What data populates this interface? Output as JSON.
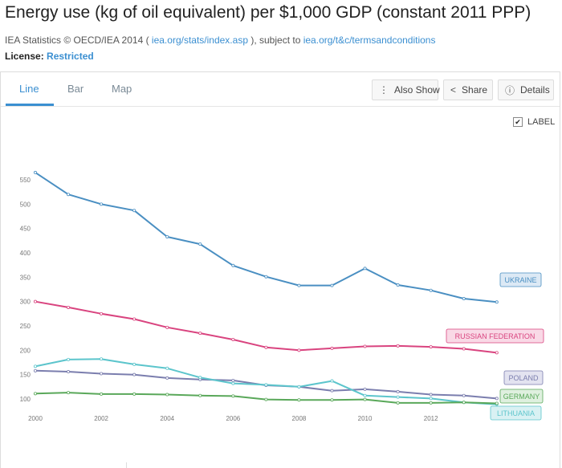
{
  "header": {
    "title": "Energy use (kg of oil equivalent) per $1,000 GDP (constant 2011 PPP)",
    "source_prefix": "IEA Statistics © OECD/IEA 2014 (",
    "source_link1": "iea.org/stats/index.asp",
    "source_mid": "), subject to",
    "source_link2": "iea.org/t&c/termsandconditions",
    "license_label": "License:",
    "license_value": "Restricted"
  },
  "tabs": [
    {
      "label": "Line",
      "active": true
    },
    {
      "label": "Bar",
      "active": false
    },
    {
      "label": "Map",
      "active": false
    }
  ],
  "toolbar": {
    "also_show": "Also Show",
    "share": "Share",
    "details": "Details"
  },
  "label_toggle": {
    "label": "LABEL",
    "checked": true
  },
  "colors": {
    "accent": "#3b8fd1",
    "ukraine": "#4a8fc2",
    "russia": "#d9447f",
    "poland": "#7b7eae",
    "germany": "#5aa85a",
    "lithuania": "#5cc5cc"
  },
  "chart_data": {
    "type": "line",
    "x": [
      2000,
      2001,
      2002,
      2003,
      2004,
      2005,
      2006,
      2007,
      2008,
      2009,
      2010,
      2011,
      2012,
      2013,
      2014
    ],
    "x_ticks": [
      "2000",
      "2002",
      "2004",
      "2006",
      "2008",
      "2010",
      "2012"
    ],
    "y_ticks": [
      "100",
      "150",
      "200",
      "250",
      "300",
      "350",
      "400",
      "450",
      "500",
      "550"
    ],
    "ylim": [
      85,
      570
    ],
    "xlim": [
      2000,
      2014.2
    ],
    "grid": false,
    "series": [
      {
        "name": "UKRAINE",
        "color_key": "ukraine",
        "values": [
          565,
          520,
          500,
          487,
          433,
          418,
          374,
          351,
          333,
          333,
          368,
          334,
          323,
          306,
          299
        ]
      },
      {
        "name": "RUSSIAN FEDERATION",
        "color_key": "russia",
        "values": [
          300,
          288,
          275,
          264,
          247,
          235,
          222,
          206,
          200,
          204,
          208,
          209,
          207,
          203,
          195
        ]
      },
      {
        "name": "POLAND",
        "color_key": "poland",
        "values": [
          158,
          156,
          152,
          150,
          143,
          140,
          138,
          128,
          125,
          117,
          120,
          115,
          109,
          107,
          101
        ]
      },
      {
        "name": "LITHUANIA",
        "color_key": "lithuania",
        "values": [
          167,
          181,
          182,
          171,
          163,
          144,
          132,
          129,
          125,
          137,
          107,
          104,
          101,
          93,
          89
        ]
      },
      {
        "name": "GERMANY",
        "color_key": "germany",
        "values": [
          111,
          113,
          110,
          110,
          109,
          107,
          106,
          99,
          98,
          98,
          99,
          92,
          92,
          93,
          91
        ]
      }
    ]
  }
}
